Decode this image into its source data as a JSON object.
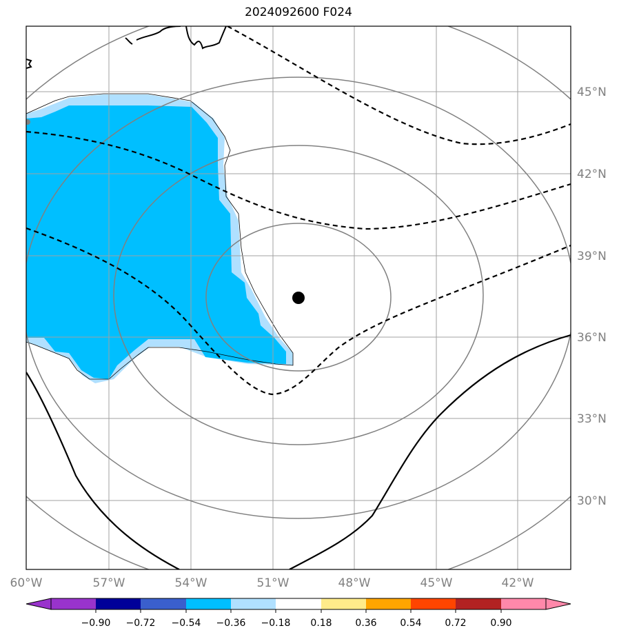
{
  "title": "2024092600 F024",
  "map": {
    "lat_labels": [
      "45°N",
      "42°N",
      "39°N",
      "36°N",
      "33°N",
      "30°N"
    ],
    "lon_labels": [
      "60°W",
      "57°W",
      "54°W",
      "51°W",
      "48°W",
      "45°W",
      "42°W"
    ],
    "gridline_color": "#a0a0a0",
    "range_ring_color": "#808080",
    "contour_color": "#000000",
    "center_marker": "filled-black-dot",
    "shaded_region_color": "#00bfff",
    "shaded_region_edge_color": "#b0e0ff"
  },
  "colorbar": {
    "tick_labels": [
      "−0.90",
      "−0.72",
      "−0.54",
      "−0.36",
      "−0.18",
      "0.18",
      "0.36",
      "0.54",
      "0.72",
      "0.90"
    ],
    "colors": [
      "#9933cc",
      "#9933cc",
      "#000099",
      "#3a5fcd",
      "#00bfff",
      "#b0e0ff",
      "#ffffff",
      "#ffeb8a",
      "#ffa500",
      "#ff4500",
      "#b22222",
      "#ff88aa",
      "#ff88aa"
    ]
  }
}
